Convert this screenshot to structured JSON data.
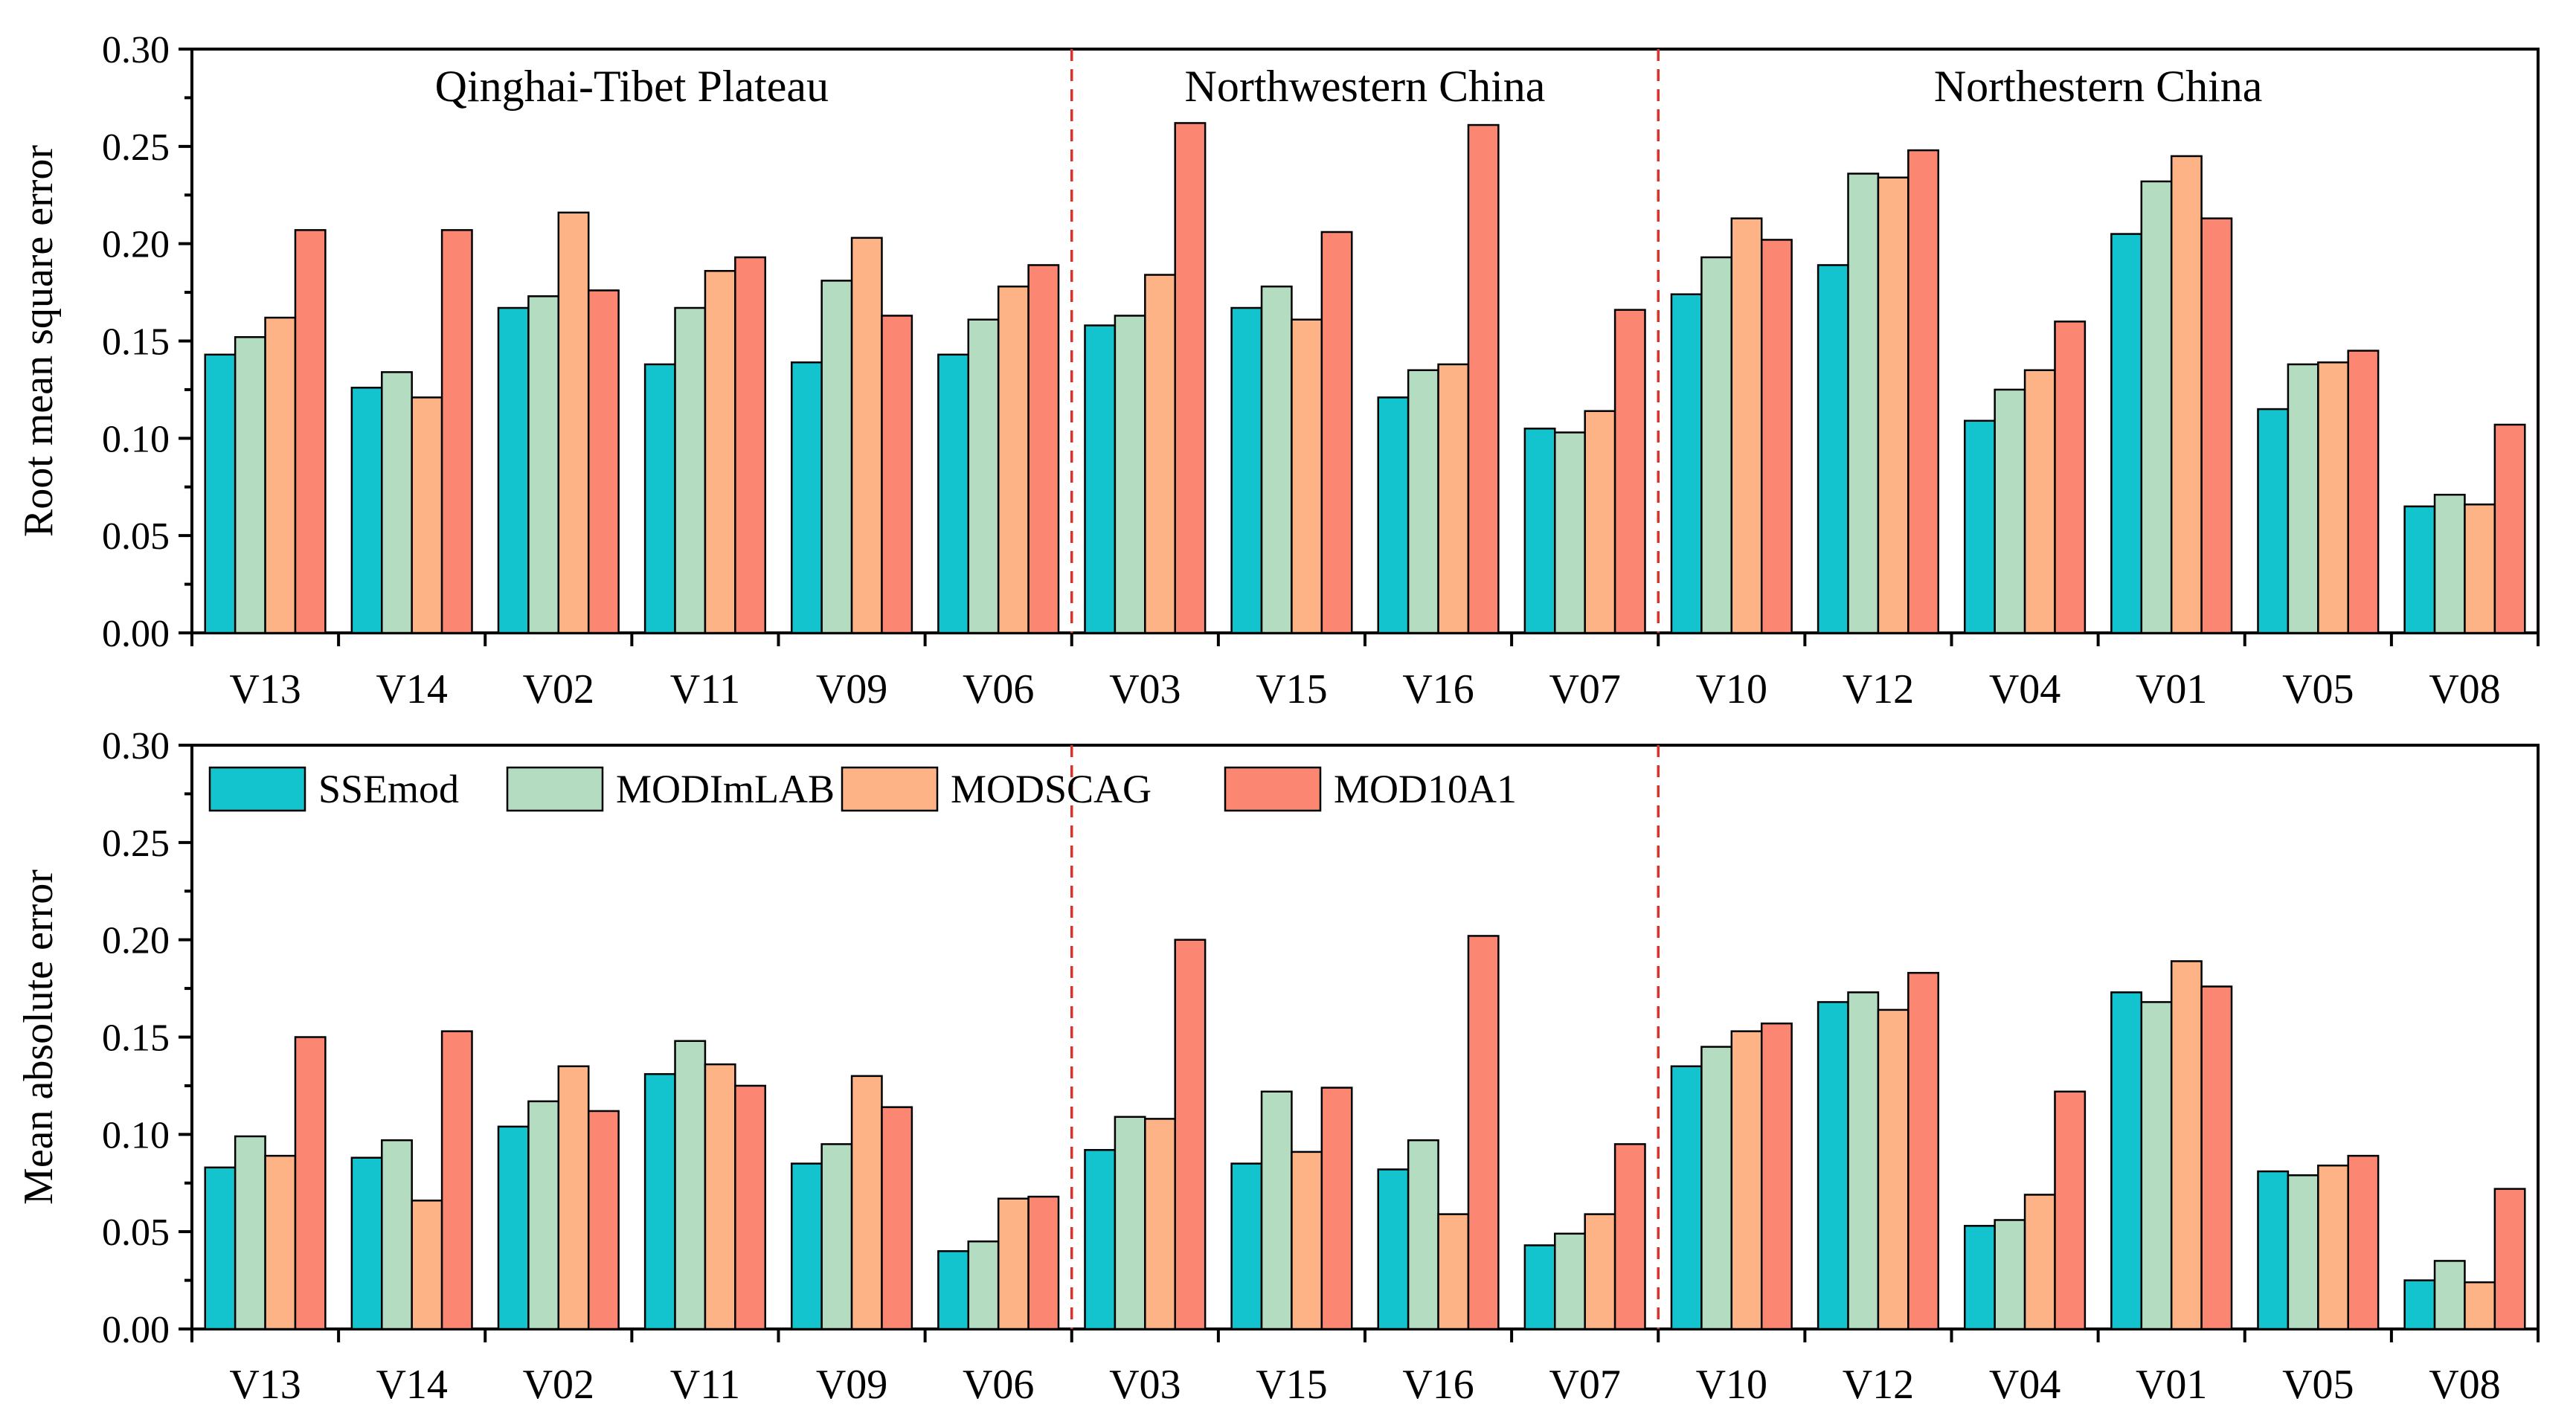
{
  "chart_data": [
    {
      "type": "bar",
      "panel": "top",
      "ylabel": "Root mean square error",
      "ylim": [
        0,
        0.3
      ],
      "yticks": [
        "0.00",
        "0.05",
        "0.10",
        "0.15",
        "0.20",
        "0.25",
        "0.30"
      ],
      "categories": [
        "V13",
        "V14",
        "V02",
        "V11",
        "V09",
        "V06",
        "V03",
        "V15",
        "V16",
        "V07",
        "V10",
        "V12",
        "V04",
        "V01",
        "V05",
        "V08"
      ],
      "regions": [
        {
          "label": "Qinghai-Tibet Plateau",
          "from": 0,
          "to": 5
        },
        {
          "label": "Northwestern China",
          "from": 6,
          "to": 9
        },
        {
          "label": "Northestern China",
          "from": 10,
          "to": 15
        }
      ],
      "series": [
        {
          "name": "SSEmod",
          "color": "#13c3cd",
          "values": [
            0.143,
            0.126,
            0.167,
            0.138,
            0.139,
            0.143,
            0.158,
            0.167,
            0.121,
            0.105,
            0.174,
            0.189,
            0.109,
            0.205,
            0.115,
            0.065
          ]
        },
        {
          "name": "MODImLAB",
          "color": "#b3dcc0",
          "values": [
            0.152,
            0.134,
            0.173,
            0.167,
            0.181,
            0.161,
            0.163,
            0.178,
            0.135,
            0.103,
            0.193,
            0.236,
            0.125,
            0.232,
            0.138,
            0.071
          ]
        },
        {
          "name": "MODSCAG",
          "color": "#fdb386",
          "values": [
            0.162,
            0.121,
            0.216,
            0.186,
            0.203,
            0.178,
            0.184,
            0.161,
            0.138,
            0.114,
            0.213,
            0.234,
            0.135,
            0.245,
            0.139,
            0.066
          ]
        },
        {
          "name": "MOD10A1",
          "color": "#fb8773",
          "values": [
            0.207,
            0.207,
            0.176,
            0.193,
            0.163,
            0.189,
            0.262,
            0.206,
            0.261,
            0.166,
            0.202,
            0.248,
            0.16,
            0.213,
            0.145,
            0.107
          ]
        }
      ]
    },
    {
      "type": "bar",
      "panel": "bottom",
      "ylabel": "Mean absolute error",
      "ylim": [
        0,
        0.3
      ],
      "yticks": [
        "0.00",
        "0.05",
        "0.10",
        "0.15",
        "0.20",
        "0.25",
        "0.30"
      ],
      "categories": [
        "V13",
        "V14",
        "V02",
        "V11",
        "V09",
        "V06",
        "V03",
        "V15",
        "V16",
        "V07",
        "V10",
        "V12",
        "V04",
        "V01",
        "V05",
        "V08"
      ],
      "legend": {
        "position": "top-left",
        "entries": [
          "SSEmod",
          "MODImLAB",
          "MODSCAG",
          "MOD10A1"
        ]
      },
      "series": [
        {
          "name": "SSEmod",
          "color": "#13c3cd",
          "values": [
            0.083,
            0.088,
            0.104,
            0.131,
            0.085,
            0.04,
            0.092,
            0.085,
            0.082,
            0.043,
            0.135,
            0.168,
            0.053,
            0.173,
            0.081,
            0.025
          ]
        },
        {
          "name": "MODImLAB",
          "color": "#b3dcc0",
          "values": [
            0.099,
            0.097,
            0.117,
            0.148,
            0.095,
            0.045,
            0.109,
            0.122,
            0.097,
            0.049,
            0.145,
            0.173,
            0.056,
            0.168,
            0.079,
            0.035
          ]
        },
        {
          "name": "MODSCAG",
          "color": "#fdb386",
          "values": [
            0.089,
            0.066,
            0.135,
            0.136,
            0.13,
            0.067,
            0.108,
            0.091,
            0.059,
            0.059,
            0.153,
            0.164,
            0.069,
            0.189,
            0.084,
            0.024
          ]
        },
        {
          "name": "MOD10A1",
          "color": "#fb8773",
          "values": [
            0.15,
            0.153,
            0.112,
            0.125,
            0.114,
            0.068,
            0.2,
            0.124,
            0.202,
            0.095,
            0.157,
            0.183,
            0.122,
            0.176,
            0.089,
            0.072
          ]
        }
      ]
    }
  ]
}
